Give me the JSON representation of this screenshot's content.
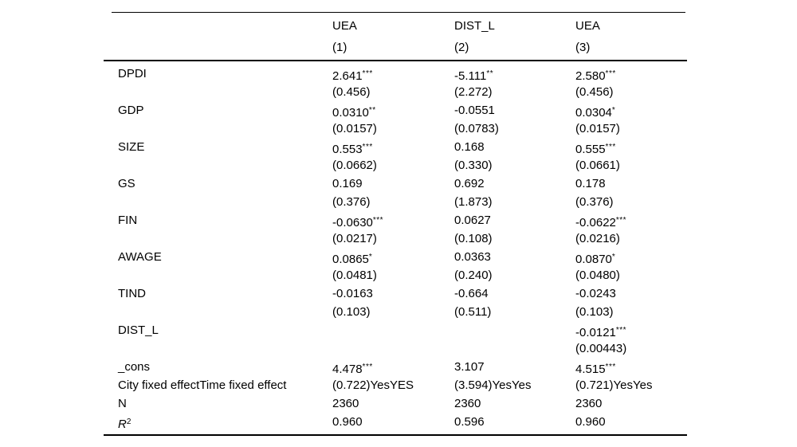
{
  "page": {
    "background_color": "#ffffff",
    "text_color": "#000000"
  },
  "table": {
    "columns": [
      {
        "dep_var": "UEA",
        "model": "(1)"
      },
      {
        "dep_var": "DIST_L",
        "model": "(2)"
      },
      {
        "dep_var": "UEA",
        "model": "(3)"
      }
    ],
    "rows": [
      {
        "label": "DPDI",
        "cells": [
          {
            "v": "2.641",
            "s": "***"
          },
          {
            "v": "-5.111",
            "s": "**"
          },
          {
            "v": "2.580",
            "s": "***"
          }
        ]
      },
      {
        "label": "",
        "cells": [
          {
            "v": "(0.456)",
            "s": ""
          },
          {
            "v": "(2.272)",
            "s": ""
          },
          {
            "v": "(0.456)",
            "s": ""
          }
        ]
      },
      {
        "label": "GDP",
        "cells": [
          {
            "v": "0.0310",
            "s": "**"
          },
          {
            "v": "-0.0551",
            "s": ""
          },
          {
            "v": "0.0304",
            "s": "*"
          }
        ]
      },
      {
        "label": "",
        "cells": [
          {
            "v": "(0.0157)",
            "s": ""
          },
          {
            "v": "(0.0783)",
            "s": ""
          },
          {
            "v": "(0.0157)",
            "s": ""
          }
        ]
      },
      {
        "label": "SIZE",
        "cells": [
          {
            "v": "0.553",
            "s": "***"
          },
          {
            "v": "0.168",
            "s": ""
          },
          {
            "v": "0.555",
            "s": "***"
          }
        ]
      },
      {
        "label": "",
        "cells": [
          {
            "v": "(0.0662)",
            "s": ""
          },
          {
            "v": "(0.330)",
            "s": ""
          },
          {
            "v": "(0.0661)",
            "s": ""
          }
        ]
      },
      {
        "label": "GS",
        "cells": [
          {
            "v": "0.169",
            "s": ""
          },
          {
            "v": "0.692",
            "s": ""
          },
          {
            "v": "0.178",
            "s": ""
          }
        ]
      },
      {
        "label": "",
        "cells": [
          {
            "v": "(0.376)",
            "s": ""
          },
          {
            "v": "(1.873)",
            "s": ""
          },
          {
            "v": "(0.376)",
            "s": ""
          }
        ]
      },
      {
        "label": "FIN",
        "cells": [
          {
            "v": "-0.0630",
            "s": "***"
          },
          {
            "v": "0.0627",
            "s": ""
          },
          {
            "v": "-0.0622",
            "s": "***"
          }
        ]
      },
      {
        "label": "",
        "cells": [
          {
            "v": "(0.0217)",
            "s": ""
          },
          {
            "v": "(0.108)",
            "s": ""
          },
          {
            "v": "(0.0216)",
            "s": ""
          }
        ]
      },
      {
        "label": "AWAGE",
        "cells": [
          {
            "v": "0.0865",
            "s": "*"
          },
          {
            "v": "0.0363",
            "s": ""
          },
          {
            "v": "0.0870",
            "s": "*"
          }
        ]
      },
      {
        "label": "",
        "cells": [
          {
            "v": "(0.0481)",
            "s": ""
          },
          {
            "v": "(0.240)",
            "s": ""
          },
          {
            "v": "(0.0480)",
            "s": ""
          }
        ]
      },
      {
        "label": "TIND",
        "cells": [
          {
            "v": "-0.0163",
            "s": ""
          },
          {
            "v": "-0.664",
            "s": ""
          },
          {
            "v": "-0.0243",
            "s": ""
          }
        ]
      },
      {
        "label": "",
        "cells": [
          {
            "v": "(0.103)",
            "s": ""
          },
          {
            "v": "(0.511)",
            "s": ""
          },
          {
            "v": "(0.103)",
            "s": ""
          }
        ]
      },
      {
        "label": "DIST_L",
        "cells": [
          {
            "v": "",
            "s": ""
          },
          {
            "v": "",
            "s": ""
          },
          {
            "v": "-0.0121",
            "s": "***"
          }
        ]
      },
      {
        "label": "",
        "cells": [
          {
            "v": "",
            "s": ""
          },
          {
            "v": "",
            "s": ""
          },
          {
            "v": "(0.00443)",
            "s": ""
          }
        ]
      },
      {
        "label": "_cons",
        "cells": [
          {
            "v": "4.478",
            "s": "***"
          },
          {
            "v": "3.107",
            "s": ""
          },
          {
            "v": "4.515",
            "s": "***"
          }
        ]
      },
      {
        "label": "City fixed effectTime fixed effect",
        "cells": [
          {
            "v": "(0.722)YesYES",
            "s": ""
          },
          {
            "v": "(3.594)YesYes",
            "s": ""
          },
          {
            "v": "(0.721)YesYes",
            "s": ""
          }
        ]
      },
      {
        "label": "N",
        "cells": [
          {
            "v": "2360",
            "s": ""
          },
          {
            "v": "2360",
            "s": ""
          },
          {
            "v": "2360",
            "s": ""
          }
        ]
      },
      {
        "label": "R",
        "label_sup": "2",
        "label_italic": true,
        "cells": [
          {
            "v": "0.960",
            "s": ""
          },
          {
            "v": "0.596",
            "s": ""
          },
          {
            "v": "0.960",
            "s": ""
          }
        ]
      }
    ]
  }
}
